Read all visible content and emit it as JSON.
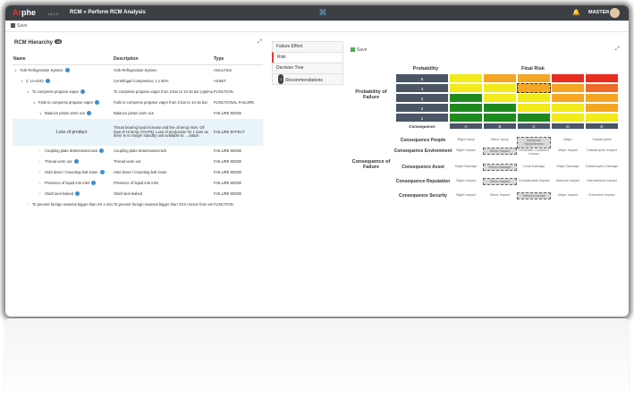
{
  "app": {
    "logo_prefix": "Ar",
    "logo_suffix": "phe",
    "version": "v4.1.0",
    "breadcrumb": "RCM » Perform RCM Analysis",
    "user": "MASTER"
  },
  "toolbar": {
    "save_label": "Save"
  },
  "hierarchy": {
    "title": "RCM Hierarchy",
    "count": "15",
    "headers": {
      "name": "Name",
      "description": "Description",
      "type": "Type"
    },
    "rows": [
      {
        "name": "York Refrigeration System",
        "description": "York Refrigeration System",
        "type": "ANALYSIS",
        "indent": 0,
        "chev": "∨"
      },
      {
        "name": "C  14-4102",
        "description": "Centrifugal Compressor, 1 x 50%",
        "type": "ASSET",
        "indent": 1,
        "chev": "∨"
      },
      {
        "name": "To compress propane vapor",
        "description": "To compress propane vapor from 3 bar to 13-16 bar (optimum is 14.8 bar)",
        "type": "FUNCTION",
        "indent": 2,
        "chev": "∨"
      },
      {
        "name": "Fails to compress propane vapor",
        "description": "Fails to compress propane vapor from 3 bar to 13-16 bar",
        "type": "FUNCTIONAL FAILURE",
        "indent": 3,
        "chev": "∨"
      },
      {
        "name": "Balance piston worn out",
        "description": "Balance piston worn out",
        "type": "FAILURE MODE",
        "indent": 4,
        "chev": "∨"
      },
      {
        "name": "Loss of product",
        "description": "Thrust bearing load increase and the oil temp rises. Oil trips of Hi temp (TAH76). Loss of production for 1 train as there is no longer standby unit available to ... attack",
        "type": "FAILURE EFFECT",
        "indent": 5,
        "chev": "",
        "highlight": true
      },
      {
        "name": "Coupling plate deteriorate/crack",
        "description": "Coupling plate deteriorate/crack",
        "type": "FAILURE MODE",
        "indent": 4,
        "chev": "›"
      },
      {
        "name": "Thread worn out",
        "description": "Thread worn out",
        "type": "FAILURE MODE",
        "indent": 4,
        "chev": "›"
      },
      {
        "name": "Hold down / mounting bolt loose",
        "description": "Hold down / mounting bolt loose",
        "type": "FAILURE MODE",
        "indent": 4,
        "chev": "›"
      },
      {
        "name": "Presence of liquid into inlet",
        "description": "Presence of liquid into inlet",
        "type": "FAILURE MODE",
        "indent": 4,
        "chev": "›"
      },
      {
        "name": "Shaft seal leaked",
        "description": "Shaft seal leaked",
        "type": "FAILURE MODE",
        "indent": 4,
        "chev": "›"
      },
      {
        "name": "To prevent foreign material bigger than XX x micron",
        "description": "To prevent foreign material bigger than XXX micron from entering the compressor (STR67902)",
        "type": "FUNCTION",
        "indent": 2,
        "chev": "›"
      }
    ]
  },
  "tabs": [
    {
      "label": "Failure Effect",
      "active": false
    },
    {
      "label": "Risk",
      "active": true
    },
    {
      "label": "Decision Tree",
      "active": false
    },
    {
      "label": "Recommendations",
      "active": false,
      "badge": "1"
    }
  ],
  "risk": {
    "save_label": "Save",
    "probability_label": "Probability",
    "final_risk_label": "Final Risk",
    "probability_of_failure_label": "Probability of Failure",
    "consequence_of_failure_label": "Consequence of Failure",
    "consequence_label": "Consequence",
    "prob_rows": [
      "5",
      "4",
      "3",
      "2",
      "1"
    ],
    "cols": [
      "A",
      "B",
      "C",
      "D",
      "E"
    ],
    "colors": {
      "green": "#1e8a1e",
      "yellow": "#f2ea1a",
      "orange": "#f5a623",
      "red": "#ea2b1f",
      "lightred": "#f06a2a"
    },
    "matrix": [
      [
        "yellow",
        "orange",
        "orange",
        "red",
        "red"
      ],
      [
        "yellow",
        "yellow",
        "orange",
        "orange",
        "lightred"
      ],
      [
        "green",
        "yellow",
        "yellow",
        "orange",
        "orange"
      ],
      [
        "green",
        "green",
        "yellow",
        "yellow",
        "orange"
      ],
      [
        "green",
        "green",
        "green",
        "yellow",
        "yellow"
      ]
    ],
    "consequences": [
      {
        "label": "Consequence People",
        "impacts": [
          "Slight Injury",
          "Minor Injury",
          "Moderate Injury/Illness",
          "Major",
          "Catastrophic"
        ],
        "selected": 2
      },
      {
        "label": "Consequence Environment",
        "impacts": [
          "Slight Impact",
          "Minor Impact",
          "Moderate Localized Impact",
          "Major Impact",
          "Catastrophic Impact"
        ],
        "selected": 1
      },
      {
        "label": "Consequence Asset",
        "impacts": [
          "Slight Damage",
          "Minor Damage",
          "Local Damage",
          "Major Damage",
          "Catastrophic Damage"
        ],
        "selected": 1
      },
      {
        "label": "Consequence Reputation",
        "impacts": [
          "Slight Impact",
          "Minor Impact",
          "Considerable Impact",
          "National Impact",
          "International Impact"
        ],
        "selected": 1
      },
      {
        "label": "Consequence Security",
        "impacts": [
          "Slight Impact",
          "Minor Impact",
          "Serious Impact",
          "Major Impact",
          "Extensive Impact"
        ],
        "selected": 2
      }
    ]
  }
}
